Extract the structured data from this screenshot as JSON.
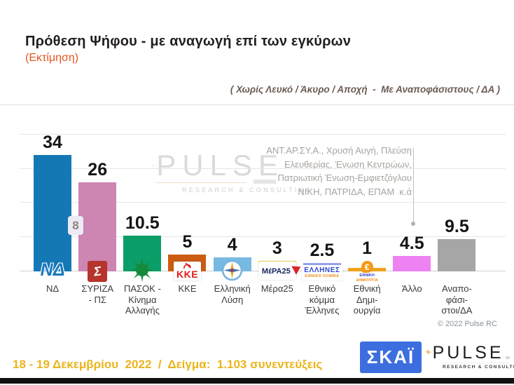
{
  "slide": {
    "title": "Πρόθεση Ψήφου - με αναγωγή επί των εγκύρων",
    "subtitle": "(Εκτίμηση)",
    "filter_note": "( Χωρίς Λευκό / Άκυρο / Αποχή  -  Με Αναποφάσιστους / ΔΑ )",
    "copyright": "© 2022 Pulse RC"
  },
  "watermark": {
    "brand": "PULSE",
    "tagline": "RESEARCH & CONSULTING"
  },
  "annotation": {
    "lines": [
      "ΑΝΤ.ΑΡ.ΣΥ.Α., Χρυσή Αυγή, Πλεύση",
      "Ελευθερίας, Ένωση Κεντρώων,",
      "Πατριωτική Ένωση-Εμφιετζόγλου",
      "ΝΙΚΗ, ΠΑΤΡΙΔΑ, ΕΠΑΜ  κ.ά"
    ],
    "points_to": "Άλλο"
  },
  "lead_gap": {
    "value": "8",
    "between": [
      "ΝΔ",
      "ΣΥΡΙΖΑ - ΠΣ"
    ]
  },
  "chart_data": {
    "type": "bar",
    "title": "Πρόθεση Ψήφου - με αναγωγή επί των εγκύρων (Εκτίμηση)",
    "xlabel": "",
    "ylabel": "",
    "ylim": [
      0,
      40
    ],
    "grid": true,
    "gridline_values": [
      10,
      20,
      30,
      40
    ],
    "legend": "none",
    "categories": [
      "ΝΔ",
      "ΣΥΡΙΖΑ - ΠΣ",
      "ΠΑΣΟΚ - Κίνημα Αλλαγής",
      "ΚΚΕ",
      "Ελληνική Λύση",
      "Μέρα25",
      "Εθνικό κόμμα Έλληνες",
      "Εθνική Δημιουργία",
      "Άλλο",
      "Αναποφάσιστοι/ΔΑ"
    ],
    "values": [
      34,
      26,
      10.5,
      5,
      4,
      3,
      2.5,
      1,
      4.5,
      9.5
    ],
    "value_labels": [
      "34",
      "26",
      "10.5",
      "5",
      "4",
      "3",
      "2.5",
      "1",
      "4.5",
      "9.5"
    ],
    "colors": [
      "#1478b4",
      "#cd85b2",
      "#0c9e69",
      "#cc5c12",
      "#78b9e2",
      "#f2e154",
      "#98a5ef",
      "#efa21b",
      "#ee82f3",
      "#a6a6a6"
    ]
  },
  "columns": [
    {
      "label_lines": [
        "ΝΔ"
      ],
      "logo": {
        "type": "nd",
        "text": "ΝΔ"
      },
      "label_lift": 0
    },
    {
      "label_lines": [
        "ΣΥΡΙΖΑ",
        "- ΠΣ"
      ],
      "logo": {
        "type": "syriza",
        "text": "Σ"
      },
      "label_lift": 0
    },
    {
      "label_lines": [
        "ΠΑΣΟΚ -",
        "Κίνημα",
        "Αλλαγής"
      ],
      "logo": {
        "type": "pasok"
      },
      "label_lift": 0
    },
    {
      "label_lines": [
        "ΚΚΕ"
      ],
      "logo": {
        "type": "kke",
        "text": "ΚΚΕ"
      },
      "label_lift": 0
    },
    {
      "label_lines": [
        "Ελληνική",
        "Λύση"
      ],
      "logo": {
        "type": "compass"
      },
      "label_lift": 0
    },
    {
      "label_lines": [
        "Μέρα25"
      ],
      "logo": {
        "type": "mera25",
        "text": "MέPA25"
      },
      "label_lift": 0
    },
    {
      "label_lines": [
        "Εθνικό",
        "κόμμα",
        "Έλληνες"
      ],
      "logo": {
        "type": "ellines",
        "text": "ΕΛΛΗΝΕΣ",
        "text2": "ΕΘΝΙΚΟ ΚΟΜΜΑ"
      },
      "label_lift": 0
    },
    {
      "label_lines": [
        "Εθνική",
        "Δημι-",
        "ουργία"
      ],
      "logo": {
        "type": "euro",
        "text": "€",
        "text2": "ΕΘΝΙΚΗ",
        "text3": "ΔΗΜΙΟΥΡΓΙΑ"
      },
      "label_lift": 15
    },
    {
      "label_lines": [
        "Άλλο"
      ],
      "logo": null,
      "label_lift": 0
    },
    {
      "label_lines": [
        "Αναπο-",
        "φάσι-",
        "στοι/ΔΑ"
      ],
      "logo": null,
      "label_lift": 0
    }
  ],
  "footer": {
    "fieldwork": "18 - 19 Δεκεμβρίου  2022  /  Δείγμα:  1.103 συνεντεύξεις",
    "skai_label": "ΣΚΑΪ",
    "pulse_brand": "PULSE",
    "pulse_tagline": "RESEARCH & CONSULTING"
  }
}
